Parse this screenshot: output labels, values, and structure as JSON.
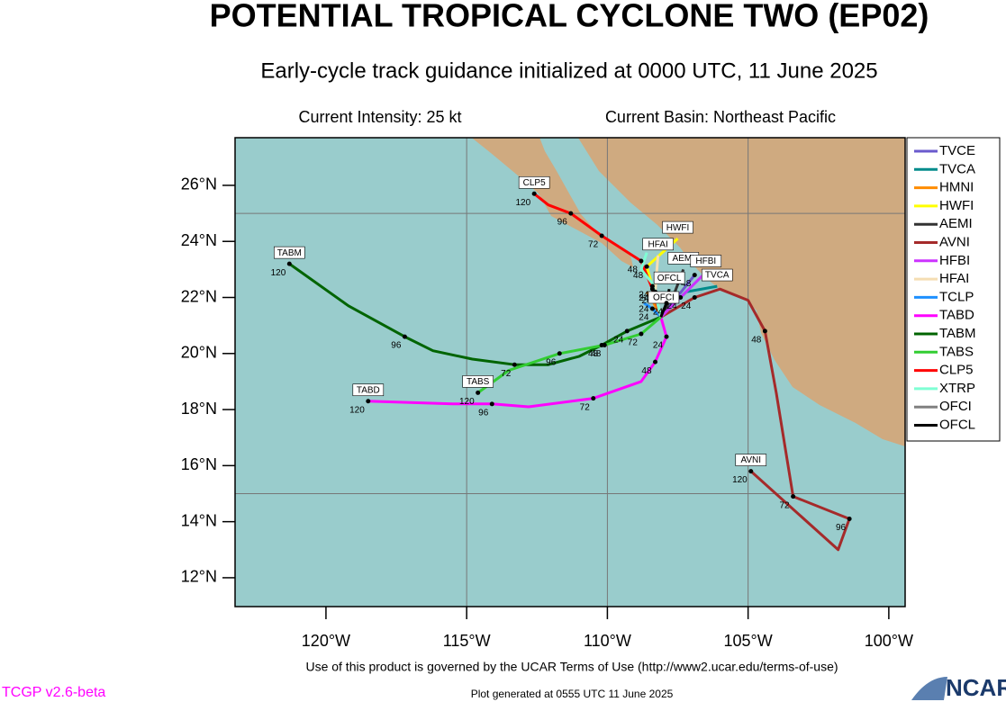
{
  "chart_data": {
    "type": "track-map",
    "title": "POTENTIAL TROPICAL CYCLONE TWO (EP02)",
    "subtitle": "Early-cycle track guidance initialized at 0000 UTC, 11 June 2025",
    "intensity": "Current Intensity: 25 kt",
    "basin": "Current Basin: Northeast Pacific",
    "xlim": [
      -123.23,
      -99.42
    ],
    "ylim": [
      10.97,
      27.7
    ],
    "xticks": [
      {
        "value": -120,
        "label": "120°W"
      },
      {
        "value": -115,
        "label": "115°W"
      },
      {
        "value": -110,
        "label": "110°W"
      },
      {
        "value": -105,
        "label": "105°W"
      },
      {
        "value": -100,
        "label": "100°W"
      }
    ],
    "yticks": [
      {
        "value": 12,
        "label": "12°N"
      },
      {
        "value": 14,
        "label": "14°N"
      },
      {
        "value": 16,
        "label": "16°N"
      },
      {
        "value": 18,
        "label": "18°N"
      },
      {
        "value": 20,
        "label": "20°N"
      },
      {
        "value": 22,
        "label": "22°N"
      },
      {
        "value": 24,
        "label": "24°N"
      },
      {
        "value": 26,
        "label": "26°N"
      }
    ],
    "grid_lon": [
      -115,
      -110,
      -105
    ],
    "grid_lat": [
      25,
      15
    ],
    "land_color": "#cfaa80",
    "ocean_color": "#99cccc",
    "legend": "right",
    "series": [
      {
        "name": "TVCE",
        "color": "#6a5acd",
        "x": [
          -108.1,
          -107.3,
          -106.9
        ],
        "y": [
          21.3,
          22.3,
          22.8
        ],
        "hours": [
          null,
          null,
          48
        ]
      },
      {
        "name": "TVCA",
        "color": "#008b8b",
        "x": [
          -108.1,
          -107.2,
          -106.1
        ],
        "y": [
          21.3,
          22.2,
          22.4
        ],
        "hours": [
          null,
          null,
          null
        ],
        "end_label": true
      },
      {
        "name": "HMNI",
        "color": "#ff8c00",
        "x": [
          -108.1,
          -108.4,
          -108.6
        ],
        "y": [
          21.3,
          21.9,
          22.2
        ],
        "hours": [
          null,
          24,
          null
        ]
      },
      {
        "name": "HWFI",
        "color": "#ffff00",
        "x": [
          -108.1,
          -108.4,
          -108.6,
          -107.5
        ],
        "y": [
          21.3,
          22.4,
          23.1,
          24.1
        ],
        "hours": [
          null,
          24,
          48,
          null
        ],
        "end_label": true
      },
      {
        "name": "AEMI",
        "color": "#333333",
        "x": [
          -108.1,
          -107.6,
          -107.3
        ],
        "y": [
          21.3,
          22.2,
          23.0
        ],
        "hours": [
          null,
          null,
          null
        ],
        "end_label": true
      },
      {
        "name": "AVNI",
        "color": "#a52a2a",
        "x": [
          -108.1,
          -106.9,
          -106.0,
          -105.0,
          -104.4,
          -104.0,
          -103.4,
          -101.4,
          -101.8,
          -104.9
        ],
        "y": [
          21.3,
          22.0,
          22.3,
          21.9,
          20.8,
          18.6,
          14.9,
          14.1,
          13.0,
          15.8
        ],
        "hours": [
          null,
          24,
          null,
          null,
          48,
          null,
          72,
          96,
          null,
          120
        ],
        "end_label": true
      },
      {
        "name": "HFBI",
        "color": "#cc33ff",
        "x": [
          -108.1,
          -107.4,
          -106.5
        ],
        "y": [
          21.3,
          22.0,
          22.9
        ],
        "hours": [
          null,
          24,
          null
        ],
        "end_label": true
      },
      {
        "name": "HFAI",
        "color": "#f5deb3",
        "x": [
          -108.1,
          -108.3,
          -108.2
        ],
        "y": [
          21.3,
          22.2,
          23.5
        ],
        "hours": [
          null,
          24,
          null
        ],
        "end_label": true
      },
      {
        "name": "TCLP",
        "color": "#1e90ff",
        "x": [
          -108.1,
          -108.4,
          -108.7
        ],
        "y": [
          21.3,
          21.6,
          21.8
        ],
        "hours": [
          null,
          24,
          null
        ]
      },
      {
        "name": "TABD",
        "color": "#ff00ff",
        "x": [
          -108.1,
          -107.9,
          -108.3,
          -108.8,
          -110.5,
          -112.8,
          -114.1,
          -115.5,
          -118.5
        ],
        "y": [
          21.3,
          20.6,
          19.7,
          19.0,
          18.4,
          18.1,
          18.2,
          18.2,
          18.3
        ],
        "hours": [
          null,
          24,
          48,
          null,
          72,
          null,
          96,
          null,
          120
        ],
        "end_label": true
      },
      {
        "name": "TABM",
        "color": "#006400",
        "x": [
          -108.1,
          -109.3,
          -110.2,
          -111.0,
          -112.1,
          -113.3,
          -114.8,
          -116.2,
          -117.2,
          -119.2,
          -121.3
        ],
        "y": [
          21.3,
          20.8,
          20.3,
          19.9,
          19.6,
          19.6,
          19.8,
          20.1,
          20.6,
          21.7,
          23.2
        ],
        "hours": [
          null,
          24,
          48,
          null,
          null,
          72,
          null,
          null,
          96,
          null,
          120
        ],
        "end_label": true
      },
      {
        "name": "TABS",
        "color": "#32cd32",
        "x": [
          -108.1,
          -108.8,
          -110.1,
          -111.7,
          -113.5,
          -114.6
        ],
        "y": [
          21.3,
          20.7,
          20.3,
          20.0,
          19.4,
          18.6
        ],
        "hours": [
          null,
          72,
          48,
          96,
          null,
          120
        ],
        "end_label": true
      },
      {
        "name": "CLP5",
        "color": "#ff0000",
        "x": [
          -108.1,
          -108.4,
          -108.8,
          -110.2,
          -111.3,
          -112.1,
          -112.6
        ],
        "y": [
          21.3,
          22.3,
          23.3,
          24.2,
          25.0,
          25.3,
          25.7
        ],
        "hours": [
          null,
          24,
          48,
          72,
          96,
          null,
          120
        ],
        "end_label": true
      },
      {
        "name": "XTRP",
        "color": "#7fffd4",
        "x": [
          -108.1,
          -108.4,
          -108.8,
          -108.6
        ],
        "y": [
          21.3,
          22.5,
          23.0,
          23.6
        ],
        "hours": [
          null,
          null,
          null,
          null
        ]
      },
      {
        "name": "OFCI",
        "color": "#808080",
        "x": [
          -108.1,
          -108.0
        ],
        "y": [
          21.3,
          21.6
        ],
        "hours": [
          null,
          null
        ],
        "end_label": true
      },
      {
        "name": "OFCL",
        "color": "#000000",
        "x": [
          -108.1,
          -107.9,
          -107.8
        ],
        "y": [
          21.3,
          21.8,
          22.3
        ],
        "hours": [
          null,
          24,
          null
        ],
        "end_label": true
      }
    ]
  },
  "footer": {
    "terms": "Use of this product is governed by the UCAR Terms of Use (http://www2.ucar.edu/terms-of-use)",
    "version": "TCGP v2.6-beta",
    "generated": "Plot generated at 0555 UTC   11 June 2025",
    "logo": "NCAR"
  }
}
